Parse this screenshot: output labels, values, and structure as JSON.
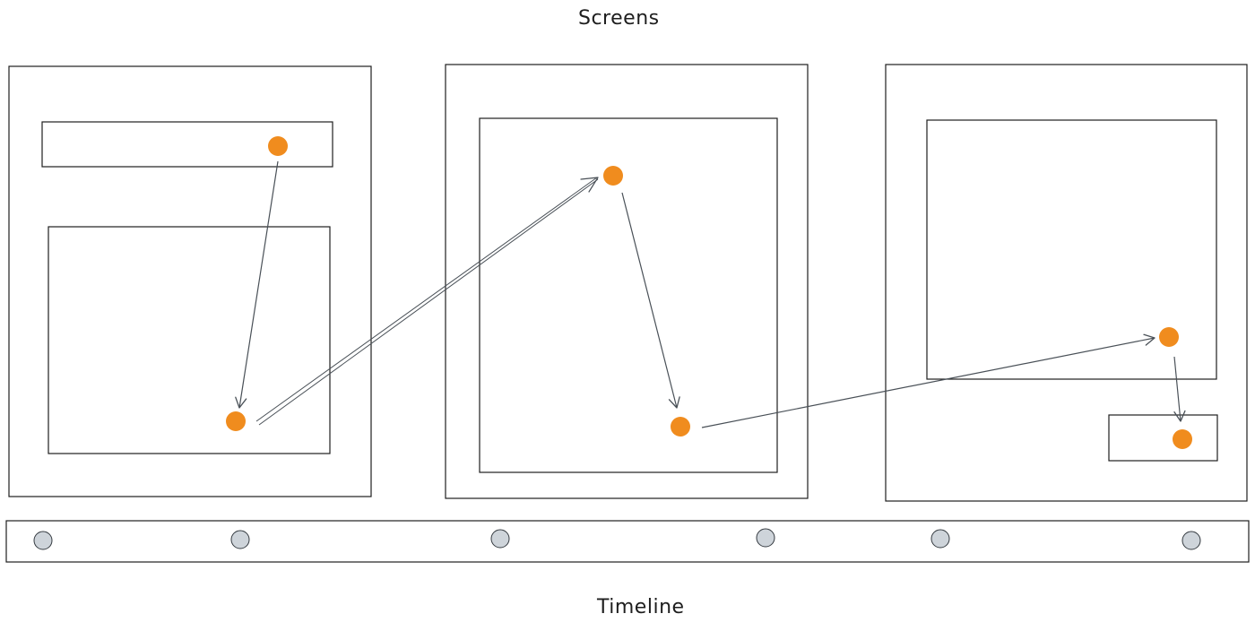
{
  "labels": {
    "screens": "Screens",
    "timeline": "Timeline"
  },
  "colors": {
    "stroke": "#1e1e1e",
    "arrow": "#495057",
    "dot": "#f08c1e",
    "timeline_dot_fill": "#ced4da",
    "timeline_dot_stroke": "#343a40"
  },
  "screens": [
    {
      "id": "screen-1",
      "elements": [
        "header-bar",
        "content-box"
      ]
    },
    {
      "id": "screen-2",
      "elements": [
        "content-box"
      ]
    },
    {
      "id": "screen-3",
      "elements": [
        "content-box",
        "footer-box"
      ]
    }
  ],
  "flow": {
    "steps": 6,
    "arrows": 5
  },
  "timeline": {
    "markers": 6
  }
}
